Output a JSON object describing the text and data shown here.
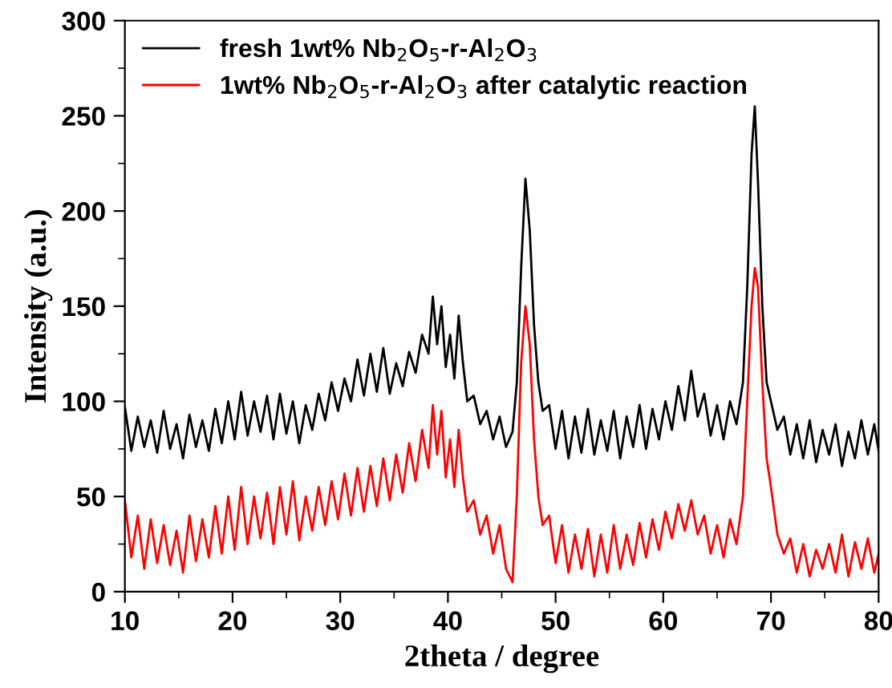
{
  "chart_data": {
    "type": "line",
    "xlabel": "2theta / degree",
    "ylabel": "Intensity (a.u.)",
    "x": [
      10,
      10.6,
      11.2,
      11.8,
      12.4,
      13,
      13.6,
      14.2,
      14.8,
      15.4,
      16,
      16.6,
      17.2,
      17.8,
      18.4,
      19,
      19.6,
      20.2,
      20.8,
      21.4,
      22,
      22.6,
      23.2,
      23.8,
      24.4,
      25,
      25.6,
      26.2,
      26.8,
      27.4,
      28,
      28.6,
      29.2,
      29.8,
      30.4,
      31,
      31.6,
      32.2,
      32.8,
      33.4,
      34,
      34.6,
      35.2,
      35.8,
      36.4,
      37,
      37.6,
      38.2,
      38.6,
      39,
      39.4,
      39.8,
      40.2,
      40.6,
      41,
      41.4,
      41.8,
      42.4,
      43,
      43.6,
      44.2,
      44.8,
      45.4,
      46,
      46.4,
      46.8,
      47.2,
      47.6,
      48,
      48.4,
      48.8,
      49.4,
      50,
      50.6,
      51.2,
      51.8,
      52.4,
      53,
      53.6,
      54.2,
      54.8,
      55.4,
      56,
      56.6,
      57.2,
      57.8,
      58.4,
      59,
      59.6,
      60.2,
      60.8,
      61.4,
      62,
      62.6,
      63.2,
      63.8,
      64.4,
      65,
      65.6,
      66.2,
      66.8,
      67.4,
      67.8,
      68.2,
      68.5,
      68.8,
      69.2,
      69.6,
      70,
      70.6,
      71.2,
      71.8,
      72.4,
      73,
      73.6,
      74.2,
      74.8,
      75.4,
      76,
      76.6,
      77.2,
      77.8,
      78.4,
      79,
      79.6,
      80
    ],
    "series": [
      {
        "name": "fresh 1wt% Nb$_{2}$O$_{5}$-r-Al$_{2}$O$_{3}$",
        "color": "#000000",
        "values": [
          97,
          74,
          92,
          76,
          90,
          73,
          95,
          75,
          88,
          70,
          93,
          76,
          90,
          74,
          96,
          78,
          100,
          80,
          105,
          82,
          100,
          84,
          103,
          80,
          104,
          83,
          100,
          78,
          98,
          85,
          104,
          90,
          110,
          95,
          112,
          100,
          122,
          103,
          125,
          105,
          128,
          104,
          120,
          108,
          126,
          115,
          135,
          125,
          155,
          130,
          150,
          118,
          135,
          112,
          145,
          120,
          100,
          103,
          88,
          95,
          80,
          92,
          76,
          84,
          110,
          170,
          217,
          190,
          140,
          110,
          95,
          98,
          75,
          95,
          70,
          92,
          73,
          96,
          72,
          90,
          74,
          95,
          70,
          92,
          76,
          98,
          75,
          96,
          80,
          100,
          85,
          108,
          90,
          116,
          92,
          104,
          82,
          98,
          80,
          100,
          88,
          110,
          160,
          230,
          255,
          215,
          150,
          110,
          100,
          85,
          92,
          72,
          88,
          70,
          90,
          68,
          85,
          72,
          88,
          66,
          84,
          70,
          90,
          72,
          88,
          74
        ]
      },
      {
        "name": "1wt% Nb$_{2}$O$_{5}$-r-Al$_{2}$O$_{3}$ after catalytic reaction",
        "color": "#ff0000",
        "values": [
          48,
          18,
          40,
          12,
          38,
          15,
          35,
          14,
          32,
          10,
          40,
          16,
          38,
          18,
          45,
          20,
          50,
          22,
          55,
          25,
          50,
          28,
          52,
          25,
          55,
          30,
          58,
          27,
          50,
          32,
          55,
          35,
          58,
          38,
          62,
          40,
          65,
          42,
          66,
          45,
          70,
          48,
          72,
          52,
          78,
          58,
          85,
          65,
          98,
          72,
          95,
          60,
          80,
          55,
          85,
          60,
          42,
          48,
          30,
          40,
          20,
          35,
          12,
          5,
          50,
          120,
          150,
          130,
          80,
          50,
          35,
          40,
          15,
          35,
          10,
          30,
          12,
          33,
          8,
          30,
          10,
          35,
          12,
          30,
          14,
          36,
          18,
          38,
          22,
          42,
          28,
          46,
          32,
          48,
          30,
          40,
          20,
          35,
          18,
          38,
          25,
          50,
          100,
          150,
          170,
          160,
          110,
          70,
          55,
          30,
          20,
          28,
          10,
          25,
          8,
          22,
          12,
          25,
          10,
          30,
          8,
          26,
          12,
          28,
          10,
          20
        ]
      }
    ],
    "xlim": [
      10,
      80
    ],
    "ylim": [
      0,
      300
    ],
    "xticks": [
      10,
      20,
      30,
      40,
      50,
      60,
      70,
      80
    ],
    "yticks": [
      0,
      50,
      100,
      150,
      200,
      250,
      300
    ],
    "grid": false,
    "legend": "top left",
    "marker": "none",
    "line_style": "solid"
  }
}
